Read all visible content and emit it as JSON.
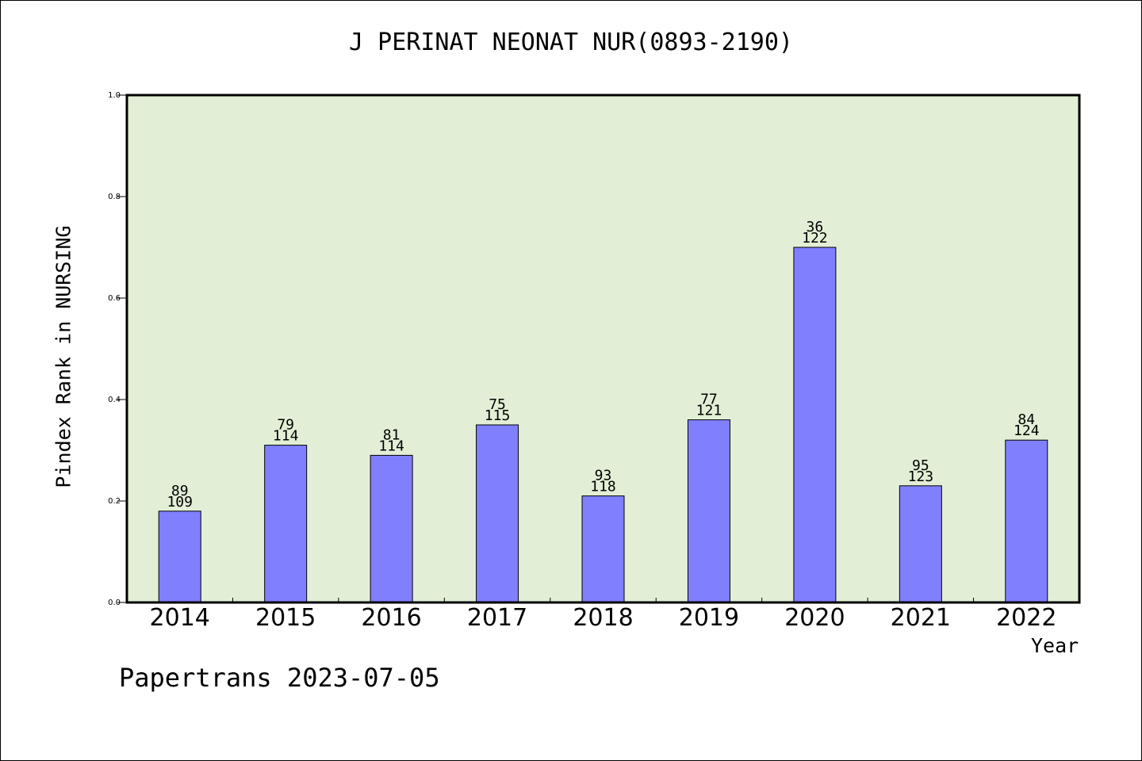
{
  "chart_data": {
    "type": "bar",
    "title": "J PERINAT NEONAT NUR(0893-2190)",
    "xlabel": "Year",
    "ylabel": "Pindex Rank in NURSING",
    "ylim": [
      0,
      1.0
    ],
    "yticks": [
      "0.0",
      "0.2",
      "0.4",
      "0.6",
      "0.8",
      "1.0"
    ],
    "categories": [
      "2014",
      "2015",
      "2016",
      "2017",
      "2018",
      "2019",
      "2020",
      "2021",
      "2022"
    ],
    "values": [
      0.18,
      0.31,
      0.29,
      0.35,
      0.21,
      0.36,
      0.7,
      0.23,
      0.32
    ],
    "labels_top": [
      "89",
      "79",
      "81",
      "75",
      "93",
      "77",
      "36",
      "95",
      "84"
    ],
    "labels_bottom": [
      "109",
      "114",
      "114",
      "115",
      "118",
      "121",
      "122",
      "123",
      "124"
    ],
    "grid": false,
    "colors": {
      "bar": "#8080ff",
      "plot_bg": "#e2efd6"
    }
  },
  "footer": "Papertrans 2023-07-05"
}
